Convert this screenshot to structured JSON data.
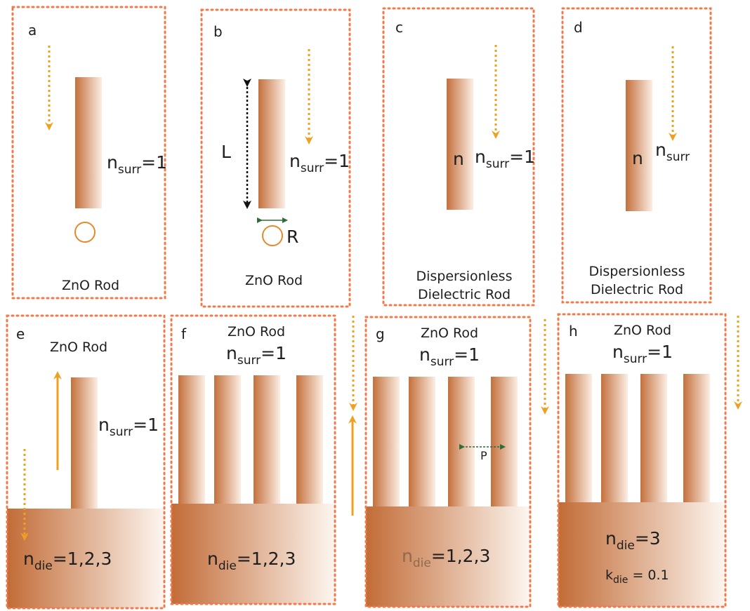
{
  "panels": {
    "a": {
      "letter": "a",
      "caption": "ZnO Rod",
      "nsurr_label": "n",
      "nsurr_sub": "surr",
      "nsurr_value": "=1"
    },
    "b": {
      "letter": "b",
      "caption": "ZnO Rod",
      "nsurr_label": "n",
      "nsurr_sub": "surr",
      "nsurr_value": "=1",
      "length_label": "L",
      "radius_label": "R"
    },
    "c": {
      "letter": "c",
      "caption_line1": "Dispersionless",
      "caption_line2": "Dielectric Rod",
      "rod_index": "n",
      "nsurr_label": "n",
      "nsurr_sub": "surr",
      "nsurr_value": "=1"
    },
    "d": {
      "letter": "d",
      "caption_line1": "Dispersionless",
      "caption_line2": "Dielectric Rod",
      "rod_index": "n",
      "nsurr_label": "n",
      "nsurr_sub": "surr"
    },
    "e": {
      "letter": "e",
      "caption": "ZnO Rod",
      "nsurr_label": "n",
      "nsurr_sub": "surr",
      "nsurr_value": "=1",
      "ndie_label": "n",
      "ndie_sub": "die",
      "ndie_value": "=1,2,3"
    },
    "f": {
      "letter": "f",
      "caption": "ZnO Rod",
      "nsurr_label": "n",
      "nsurr_sub": "surr",
      "nsurr_value": "=1",
      "ndie_label": "n",
      "ndie_sub": "die",
      "ndie_value": "=1,2,3"
    },
    "g": {
      "letter": "g",
      "caption": "ZnO Rod",
      "nsurr_label": "n",
      "nsurr_sub": "surr",
      "nsurr_value": "=1",
      "period_label": "P",
      "ndie_label": "n",
      "ndie_sub": "die",
      "ndie_value": "=1,2,3"
    },
    "h": {
      "letter": "h",
      "caption": "ZnO Rod",
      "nsurr_label": "n",
      "nsurr_sub": "surr",
      "nsurr_value": "=1",
      "ndie_label": "n",
      "ndie_sub": "die",
      "ndie_value": "=3",
      "kdie_label": "k",
      "kdie_sub": "die",
      "kdie_value": " = 0.1"
    }
  },
  "colors": {
    "frame": "#f07a4a",
    "arrow": "#f0a020",
    "rod_dark": "#c4703c",
    "rod_light": "#fbeee4",
    "dimension": "#111111",
    "period_arrow": "#2f6b3a"
  }
}
